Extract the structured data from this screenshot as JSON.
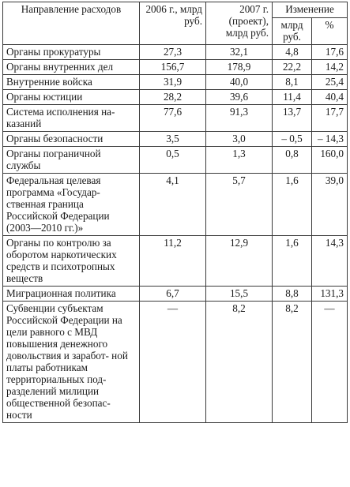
{
  "table": {
    "headers": {
      "name": "Направление расходов",
      "year2006": "2006 г., млрд руб.",
      "year2007": "2007 г. (проект), млрд руб.",
      "change": "Изменение",
      "change_abs": "млрд руб.",
      "change_pct": "%"
    },
    "rows": [
      {
        "name": "Органы прокуратуры",
        "y2006": "27,3",
        "y2007": "32,1",
        "abs": "4,8",
        "pct": "17,6"
      },
      {
        "name": "Органы внутренних дел",
        "y2006": "156,7",
        "y2007": "178,9",
        "abs": "22,2",
        "pct": "14,2"
      },
      {
        "name": "Внутренние войска",
        "y2006": "31,9",
        "y2007": "40,0",
        "abs": "8,1",
        "pct": "25,4"
      },
      {
        "name": "Органы юстиции",
        "y2006": "28,2",
        "y2007": "39,6",
        "abs": "11,4",
        "pct": "40,4"
      },
      {
        "name": "Система исполнения на- казаний",
        "y2006": "77,6",
        "y2007": "91,3",
        "abs": "13,7",
        "pct": "17,7"
      },
      {
        "name": "Органы безопасности",
        "y2006": "3,5",
        "y2007": "3,0",
        "abs": "– 0,5",
        "pct": "– 14,3"
      },
      {
        "name": "Органы пограничной службы",
        "y2006": "0,5",
        "y2007": "1,3",
        "abs": "0,8",
        "pct": "160,0"
      },
      {
        "name": "Федеральная целевая программа «Государ- ственная граница Российской Федерации (2003—2010 гг.)»",
        "y2006": "4,1",
        "y2007": "5,7",
        "abs": "1,6",
        "pct": "39,0"
      },
      {
        "name": "Органы по контролю за оборотом наркотических средств и психотропных веществ",
        "y2006": "11,2",
        "y2007": "12,9",
        "abs": "1,6",
        "pct": "14,3"
      },
      {
        "name": "Миграционная политика",
        "y2006": "6,7",
        "y2007": "15,5",
        "abs": "8,8",
        "pct": "131,3"
      },
      {
        "name": "Субвенции субъектам Российской Федерации на цели равного с МВД повышения денежного довольствия и заработ- ной платы работникам территориальных под- разделений милиции общественной безопас- ности",
        "y2006": "—",
        "y2007": "8,2",
        "abs": "8,2",
        "pct": "—"
      }
    ]
  }
}
